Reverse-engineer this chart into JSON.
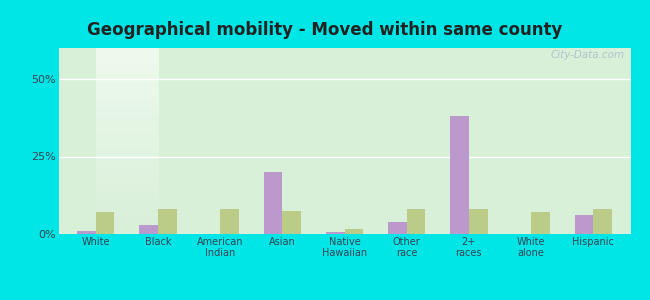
{
  "title": "Geographical mobility - Moved within same county",
  "categories": [
    "White",
    "Black",
    "American\nIndian",
    "Asian",
    "Native\nHawaiian",
    "Other\nrace",
    "2+\nraces",
    "White\nalone",
    "Hispanic"
  ],
  "lanham_values": [
    1.0,
    3.0,
    0.0,
    20.0,
    0.5,
    4.0,
    38.0,
    0.0,
    6.0
  ],
  "maryland_values": [
    7.0,
    8.0,
    8.0,
    7.5,
    1.5,
    8.0,
    8.0,
    7.0,
    8.0
  ],
  "lanham_color": "#bb99cc",
  "maryland_color": "#bbcc88",
  "background_outer": "#00e5e5",
  "background_inner_bottom": "#d8efd8",
  "background_inner_top": "#eefaee",
  "title_fontsize": 12,
  "ylim": [
    0,
    60
  ],
  "yticks": [
    0,
    25,
    50
  ],
  "ytick_labels": [
    "0%",
    "25%",
    "50%"
  ],
  "watermark": "City-Data.com",
  "bar_width": 0.3
}
